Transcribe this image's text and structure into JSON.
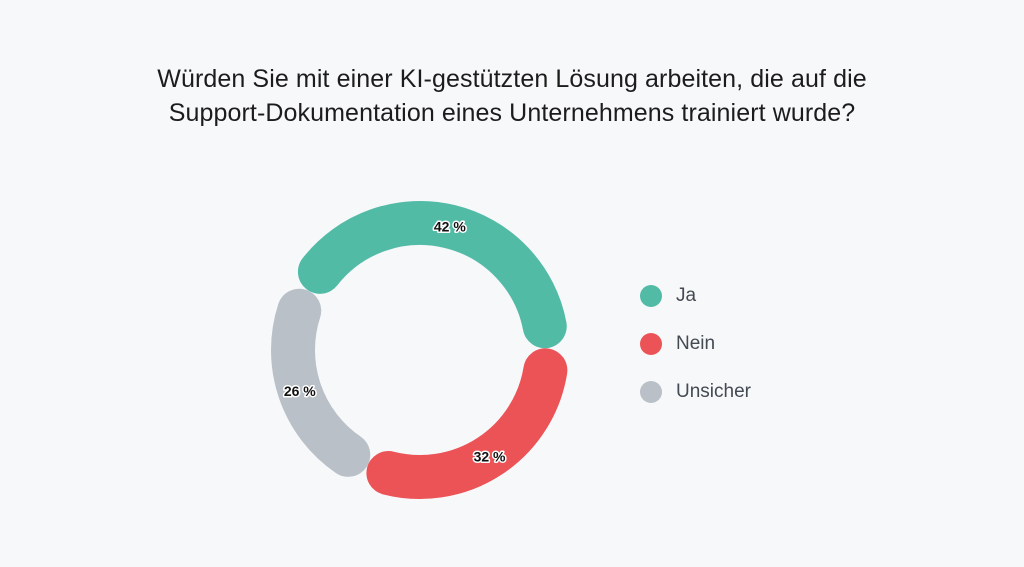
{
  "chart_data": {
    "type": "pie",
    "variant": "donut",
    "title_lines": [
      "Würden Sie mit einer KI-gestützten Lösung arbeiten, die auf die",
      "Support-Dokumentation eines Unternehmens trainiert wurde?"
    ],
    "categories": [
      "Ja",
      "Nein",
      "Unsicher"
    ],
    "values": [
      42,
      32,
      26
    ],
    "data_labels": [
      "42 %",
      "32 %",
      "26 %"
    ],
    "colors": [
      "#52bba6",
      "#eb5356",
      "#b9c0c8"
    ],
    "legend_position": "right"
  }
}
